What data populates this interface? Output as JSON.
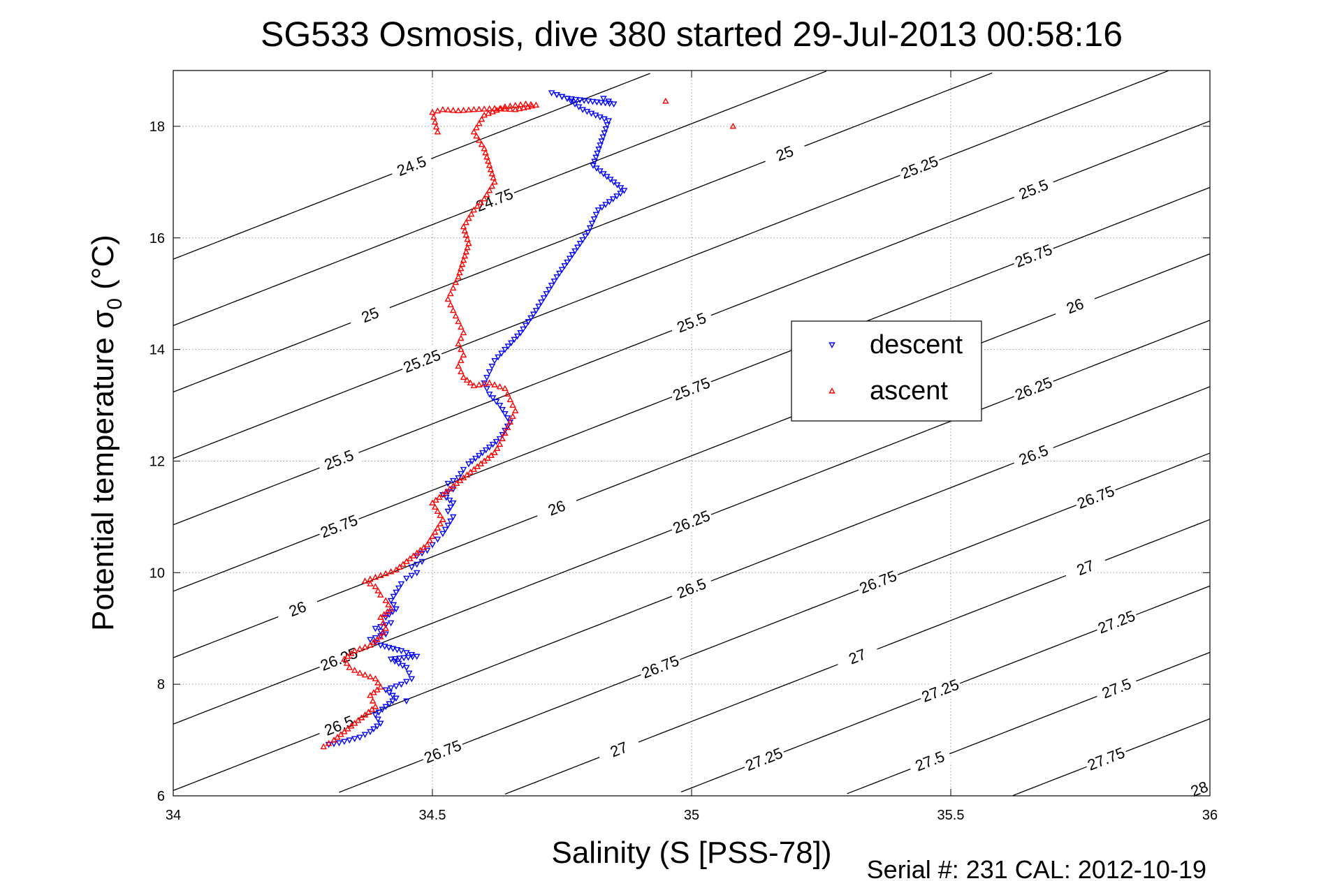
{
  "chart_data": {
    "type": "scatter",
    "title": "SG533 Osmosis, dive 380 started 29-Jul-2013 00:58:16",
    "xlabel": "Salinity (S [PSS-78])",
    "ylabel_main": "Potential temperature σ",
    "ylabel_sub": "0",
    "ylabel_unit": " (°C)",
    "xlim": [
      34,
      36
    ],
    "ylim": [
      6,
      19
    ],
    "xticks": [
      34,
      34.5,
      35,
      35.5,
      36
    ],
    "xtick_labels": [
      "34",
      "34.5",
      "35",
      "35.5",
      "36"
    ],
    "yticks": [
      6,
      8,
      10,
      12,
      14,
      16,
      18
    ],
    "ytick_labels": [
      "6",
      "8",
      "10",
      "12",
      "14",
      "16",
      "18"
    ],
    "grid": true,
    "legend_position": "center-right",
    "footer": "Serial #: 231  CAL: 2012-10-19",
    "series": [
      {
        "name": "descent",
        "color": "#0000ff",
        "marker": "triangle-down",
        "points": [
          [
            34.3,
            6.92
          ],
          [
            34.32,
            6.95
          ],
          [
            34.34,
            7.0
          ],
          [
            34.36,
            7.05
          ],
          [
            34.38,
            7.15
          ],
          [
            34.4,
            7.3
          ],
          [
            34.39,
            7.45
          ],
          [
            34.41,
            7.6
          ],
          [
            34.43,
            7.75
          ],
          [
            34.41,
            7.9
          ],
          [
            34.44,
            8.0
          ],
          [
            34.46,
            8.1
          ],
          [
            34.45,
            8.3
          ],
          [
            34.42,
            8.45
          ],
          [
            34.47,
            8.5
          ],
          [
            34.44,
            8.6
          ],
          [
            34.4,
            8.7
          ],
          [
            34.38,
            8.8
          ],
          [
            34.41,
            8.9
          ],
          [
            34.39,
            9.0
          ],
          [
            34.42,
            9.1
          ],
          [
            34.41,
            9.2
          ],
          [
            34.43,
            9.35
          ],
          [
            34.42,
            9.5
          ],
          [
            34.43,
            9.65
          ],
          [
            34.44,
            9.8
          ],
          [
            34.45,
            9.9
          ],
          [
            34.47,
            10.0
          ],
          [
            34.46,
            10.1
          ],
          [
            34.48,
            10.2
          ],
          [
            34.47,
            10.3
          ],
          [
            34.49,
            10.4
          ],
          [
            34.5,
            10.5
          ],
          [
            34.51,
            10.6
          ],
          [
            34.52,
            10.7
          ],
          [
            34.53,
            10.85
          ],
          [
            34.54,
            11.0
          ],
          [
            34.53,
            11.1
          ],
          [
            34.54,
            11.25
          ],
          [
            34.52,
            11.4
          ],
          [
            34.54,
            11.5
          ],
          [
            34.53,
            11.6
          ],
          [
            34.55,
            11.7
          ],
          [
            34.56,
            11.85
          ],
          [
            34.57,
            11.95
          ],
          [
            34.59,
            12.1
          ],
          [
            34.61,
            12.25
          ],
          [
            34.63,
            12.4
          ],
          [
            34.64,
            12.55
          ],
          [
            34.65,
            12.7
          ],
          [
            34.64,
            12.85
          ],
          [
            34.63,
            13.0
          ],
          [
            34.61,
            13.2
          ],
          [
            34.6,
            13.4
          ],
          [
            34.61,
            13.6
          ],
          [
            34.62,
            13.8
          ],
          [
            34.64,
            14.0
          ],
          [
            34.67,
            14.3
          ],
          [
            34.7,
            14.7
          ],
          [
            34.72,
            15.0
          ],
          [
            34.74,
            15.3
          ],
          [
            34.77,
            15.7
          ],
          [
            34.8,
            16.1
          ],
          [
            34.82,
            16.5
          ],
          [
            34.87,
            16.85
          ],
          [
            34.81,
            17.3
          ],
          [
            34.84,
            18.1
          ],
          [
            34.79,
            18.3
          ],
          [
            34.76,
            18.5
          ],
          [
            34.73,
            18.6
          ],
          [
            34.76,
            18.5
          ],
          [
            34.85,
            18.4
          ],
          [
            34.83,
            18.5
          ],
          [
            34.45,
            7.7
          ]
        ]
      },
      {
        "name": "ascent",
        "color": "#ff0000",
        "marker": "triangle-up",
        "points": [
          [
            34.29,
            6.88
          ],
          [
            34.31,
            7.0
          ],
          [
            34.33,
            7.15
          ],
          [
            34.35,
            7.3
          ],
          [
            34.37,
            7.45
          ],
          [
            34.39,
            7.6
          ],
          [
            34.38,
            7.8
          ],
          [
            34.4,
            7.95
          ],
          [
            34.39,
            8.1
          ],
          [
            34.36,
            8.2
          ],
          [
            34.34,
            8.3
          ],
          [
            34.33,
            8.45
          ],
          [
            34.35,
            8.6
          ],
          [
            34.38,
            8.7
          ],
          [
            34.4,
            8.85
          ],
          [
            34.41,
            9.0
          ],
          [
            34.4,
            9.2
          ],
          [
            34.42,
            9.35
          ],
          [
            34.41,
            9.5
          ],
          [
            34.4,
            9.6
          ],
          [
            34.39,
            9.75
          ],
          [
            34.37,
            9.85
          ],
          [
            34.4,
            9.95
          ],
          [
            34.43,
            10.05
          ],
          [
            34.45,
            10.2
          ],
          [
            34.47,
            10.35
          ],
          [
            34.49,
            10.5
          ],
          [
            34.5,
            10.65
          ],
          [
            34.51,
            10.8
          ],
          [
            34.52,
            10.95
          ],
          [
            34.51,
            11.1
          ],
          [
            34.5,
            11.25
          ],
          [
            34.52,
            11.4
          ],
          [
            34.54,
            11.55
          ],
          [
            34.56,
            11.7
          ],
          [
            34.58,
            11.85
          ],
          [
            34.6,
            12.0
          ],
          [
            34.62,
            12.15
          ],
          [
            34.63,
            12.3
          ],
          [
            34.64,
            12.5
          ],
          [
            34.65,
            12.7
          ],
          [
            34.66,
            12.9
          ],
          [
            34.65,
            13.1
          ],
          [
            34.64,
            13.3
          ],
          [
            34.61,
            13.4
          ],
          [
            34.58,
            13.35
          ],
          [
            34.56,
            13.5
          ],
          [
            34.55,
            13.7
          ],
          [
            34.56,
            13.9
          ],
          [
            34.55,
            14.1
          ],
          [
            34.56,
            14.3
          ],
          [
            34.55,
            14.5
          ],
          [
            34.54,
            14.7
          ],
          [
            34.53,
            14.9
          ],
          [
            34.54,
            15.1
          ],
          [
            34.55,
            15.3
          ],
          [
            34.56,
            15.6
          ],
          [
            34.57,
            15.9
          ],
          [
            34.56,
            16.2
          ],
          [
            34.58,
            16.5
          ],
          [
            34.6,
            16.7
          ],
          [
            34.62,
            17.0
          ],
          [
            34.61,
            17.3
          ],
          [
            34.6,
            17.6
          ],
          [
            34.58,
            17.9
          ],
          [
            34.6,
            18.2
          ],
          [
            34.64,
            18.35
          ],
          [
            34.68,
            18.4
          ],
          [
            34.7,
            18.38
          ],
          [
            34.66,
            18.3
          ],
          [
            34.62,
            18.32
          ],
          [
            34.58,
            18.3
          ],
          [
            34.55,
            18.28
          ],
          [
            34.52,
            18.3
          ],
          [
            34.5,
            18.25
          ],
          [
            34.51,
            17.9
          ],
          [
            34.95,
            18.45
          ],
          [
            35.08,
            18.0
          ]
        ]
      }
    ],
    "contours": {
      "description_values": [
        24.5,
        24.75,
        25,
        25.25,
        25.5,
        25.75,
        26,
        26.25,
        26.5,
        26.75,
        27,
        27.25,
        27.5,
        27.75,
        28
      ],
      "lines": [
        {
          "value": 24.5,
          "labels": [
            "24.5"
          ]
        },
        {
          "value": 24.75,
          "labels": [
            "24.75"
          ]
        },
        {
          "value": 25,
          "labels": [
            "25",
            "25"
          ]
        },
        {
          "value": 25.25,
          "labels": [
            "25.25",
            "25.25"
          ]
        },
        {
          "value": 25.5,
          "labels": [
            "25.5",
            "25.5",
            "25.5"
          ]
        },
        {
          "value": 25.75,
          "labels": [
            "25.75",
            "25.75",
            "25.75"
          ]
        },
        {
          "value": 26,
          "labels": [
            "26",
            "26",
            "26",
            "26"
          ]
        },
        {
          "value": 26.25,
          "labels": [
            "26.25",
            "26.25",
            "26.25"
          ]
        },
        {
          "value": 26.5,
          "labels": [
            "26.5",
            "26.5",
            "26.5"
          ]
        },
        {
          "value": 26.75,
          "labels": [
            "26.75",
            "26.75",
            "26.75",
            "26.75"
          ]
        },
        {
          "value": 27,
          "labels": [
            "27",
            "27",
            "27"
          ]
        },
        {
          "value": 27.25,
          "labels": [
            "27.25",
            "27.25",
            "27.25"
          ]
        },
        {
          "value": 27.5,
          "labels": [
            "27.5",
            "27.5"
          ]
        },
        {
          "value": 27.75,
          "labels": [
            "27.75"
          ]
        },
        {
          "value": 28,
          "labels": [
            "28"
          ]
        }
      ]
    }
  }
}
